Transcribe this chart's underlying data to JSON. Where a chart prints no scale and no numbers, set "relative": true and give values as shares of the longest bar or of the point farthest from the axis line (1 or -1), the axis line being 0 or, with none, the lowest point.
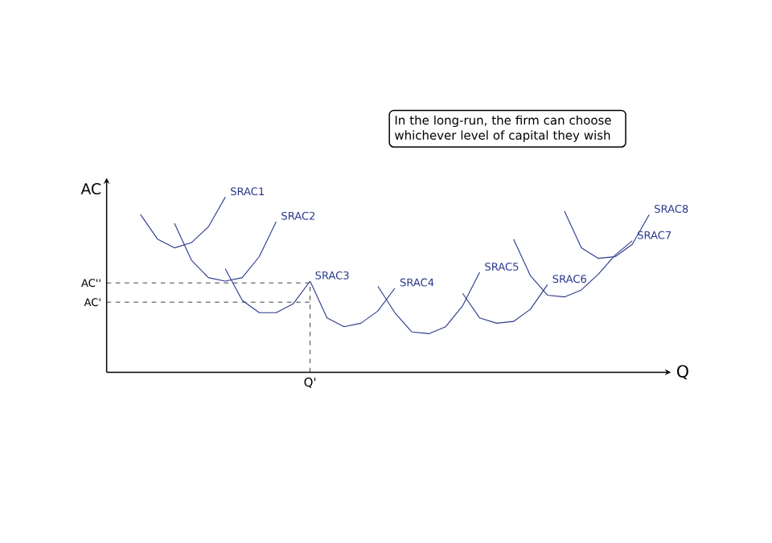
{
  "chart_data": {
    "type": "line",
    "relative": true,
    "xlabel": "Q",
    "ylabel": "AC",
    "annotations": [
      "In the long-run, the firm can choose whichever level of capital they wish",
      "Q'"
    ],
    "categories": [
      null,
      null,
      null,
      null,
      null,
      null,
      null,
      null,
      null,
      null,
      null,
      null,
      null,
      null,
      null,
      null,
      null,
      null,
      null,
      null,
      null,
      null,
      null,
      null,
      null,
      null,
      null,
      null,
      null,
      null,
      null,
      null,
      null
    ],
    "ref_lines": [
      {
        "axis": "y",
        "value": 0.51,
        "label": "AC''",
        "color": "#000000",
        "line_style": "dashed"
      },
      {
        "axis": "y",
        "value": 0.4,
        "label": "AC'",
        "color": "#000000",
        "line_style": "dashed"
      }
    ],
    "series": [
      {
        "name": "SRAC1",
        "color": "#2b3a8c",
        "values": [
          null,
          null,
          0.9,
          0.76,
          0.71,
          0.74,
          0.83,
          1.0,
          null,
          null,
          null,
          null,
          null,
          null,
          null,
          null,
          null,
          null,
          null,
          null,
          null,
          null,
          null,
          null,
          null,
          null,
          null,
          null,
          null,
          null,
          null,
          null,
          null
        ]
      },
      {
        "name": "SRAC2",
        "color": "#2b3a8c",
        "values": [
          null,
          null,
          null,
          null,
          0.85,
          0.64,
          0.54,
          0.52,
          0.54,
          0.66,
          0.86,
          null,
          null,
          null,
          null,
          null,
          null,
          null,
          null,
          null,
          null,
          null,
          null,
          null,
          null,
          null,
          null,
          null,
          null,
          null,
          null,
          null,
          null
        ]
      },
      {
        "name": "SRAC3",
        "color": "#2b3a8c",
        "values": [
          null,
          null,
          null,
          null,
          null,
          null,
          null,
          0.59,
          0.41,
          0.34,
          0.34,
          0.39,
          0.52,
          null,
          null,
          null,
          null,
          null,
          null,
          null,
          null,
          null,
          null,
          null,
          null,
          null,
          null,
          null,
          null,
          null,
          null,
          null,
          null
        ]
      },
      {
        "name": "SRAC4",
        "color": "#2b3a8c",
        "values": [
          null,
          null,
          null,
          null,
          null,
          null,
          null,
          null,
          null,
          null,
          null,
          null,
          0.52,
          0.31,
          0.26,
          0.28,
          0.35,
          0.48,
          null,
          null,
          null,
          null,
          null,
          null,
          null,
          null,
          null,
          null,
          null,
          null,
          null,
          null,
          null
        ]
      },
      {
        "name": "SRAC5",
        "color": "#2b3a8c",
        "values": [
          null,
          null,
          null,
          null,
          null,
          null,
          null,
          null,
          null,
          null,
          null,
          null,
          null,
          null,
          null,
          null,
          0.49,
          0.34,
          0.23,
          0.22,
          0.26,
          0.38,
          0.57,
          null,
          null,
          null,
          null,
          null,
          null,
          null,
          null,
          null,
          null
        ]
      },
      {
        "name": "SRAC6",
        "color": "#2b3a8c",
        "values": [
          null,
          null,
          null,
          null,
          null,
          null,
          null,
          null,
          null,
          null,
          null,
          null,
          null,
          null,
          null,
          null,
          null,
          null,
          null,
          null,
          null,
          0.45,
          0.31,
          0.28,
          0.29,
          0.36,
          0.5,
          null,
          null,
          null,
          null,
          null,
          null
        ]
      },
      {
        "name": "SRAC7",
        "color": "#2b3a8c",
        "values": [
          null,
          null,
          null,
          null,
          null,
          null,
          null,
          null,
          null,
          null,
          null,
          null,
          null,
          null,
          null,
          null,
          null,
          null,
          null,
          null,
          null,
          null,
          null,
          null,
          0.76,
          0.55,
          0.44,
          0.43,
          0.47,
          0.56,
          0.67,
          0.75,
          null
        ]
      },
      {
        "name": "SRAC8",
        "color": "#2b3a8c",
        "values": [
          null,
          null,
          null,
          null,
          null,
          null,
          null,
          null,
          null,
          null,
          null,
          null,
          null,
          null,
          null,
          null,
          null,
          null,
          null,
          null,
          null,
          null,
          null,
          null,
          null,
          null,
          null,
          0.92,
          0.71,
          0.65,
          0.66,
          0.73,
          0.9
        ]
      }
    ]
  }
}
